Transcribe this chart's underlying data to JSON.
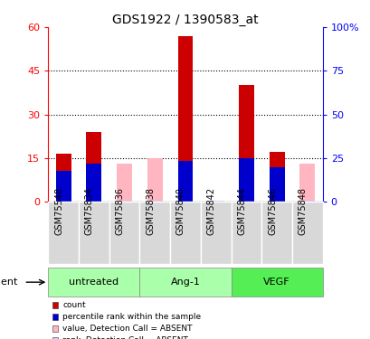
{
  "title": "GDS1922 / 1390583_at",
  "samples": [
    "GSM75548",
    "GSM75834",
    "GSM75836",
    "GSM75838",
    "GSM75840",
    "GSM75842",
    "GSM75844",
    "GSM75846",
    "GSM75848"
  ],
  "groups": [
    {
      "label": "untreated",
      "indices": [
        0,
        1,
        2
      ],
      "color": "#aaffaa"
    },
    {
      "label": "Ang-1",
      "indices": [
        3,
        4,
        5
      ],
      "color": "#aaffaa"
    },
    {
      "label": "VEGF",
      "indices": [
        6,
        7,
        8
      ],
      "color": "#44dd44"
    }
  ],
  "count_values": [
    16.5,
    24.0,
    0.0,
    0.0,
    57.0,
    0.0,
    40.0,
    17.0,
    0.0
  ],
  "rank_values": [
    10.5,
    13.0,
    0.0,
    0.0,
    14.0,
    0.0,
    15.0,
    12.0,
    0.0
  ],
  "absent_count": [
    0.0,
    0.0,
    13.0,
    15.0,
    0.0,
    0.0,
    0.0,
    0.0,
    13.0
  ],
  "absent_rank": [
    0.0,
    0.0,
    0.5,
    0.5,
    0.0,
    0.5,
    0.0,
    0.0,
    0.5
  ],
  "count_color": "#cc0000",
  "rank_color": "#0000cc",
  "absent_count_color": "#ffb6c1",
  "absent_rank_color": "#ccccff",
  "ylim_left": [
    0,
    60
  ],
  "ylim_right": [
    0,
    100
  ],
  "yticks_left": [
    0,
    15,
    30,
    45,
    60
  ],
  "ytick_labels_left": [
    "0",
    "15",
    "30",
    "45",
    "60"
  ],
  "ytick_labels_right": [
    "0",
    "25",
    "50",
    "75",
    "100%"
  ],
  "bar_width": 0.5,
  "group_label": "agent",
  "legend_items": [
    {
      "color": "#cc0000",
      "label": "count"
    },
    {
      "color": "#0000cc",
      "label": "percentile rank within the sample"
    },
    {
      "color": "#ffb6c1",
      "label": "value, Detection Call = ABSENT"
    },
    {
      "color": "#ccccff",
      "label": "rank, Detection Call = ABSENT"
    }
  ]
}
